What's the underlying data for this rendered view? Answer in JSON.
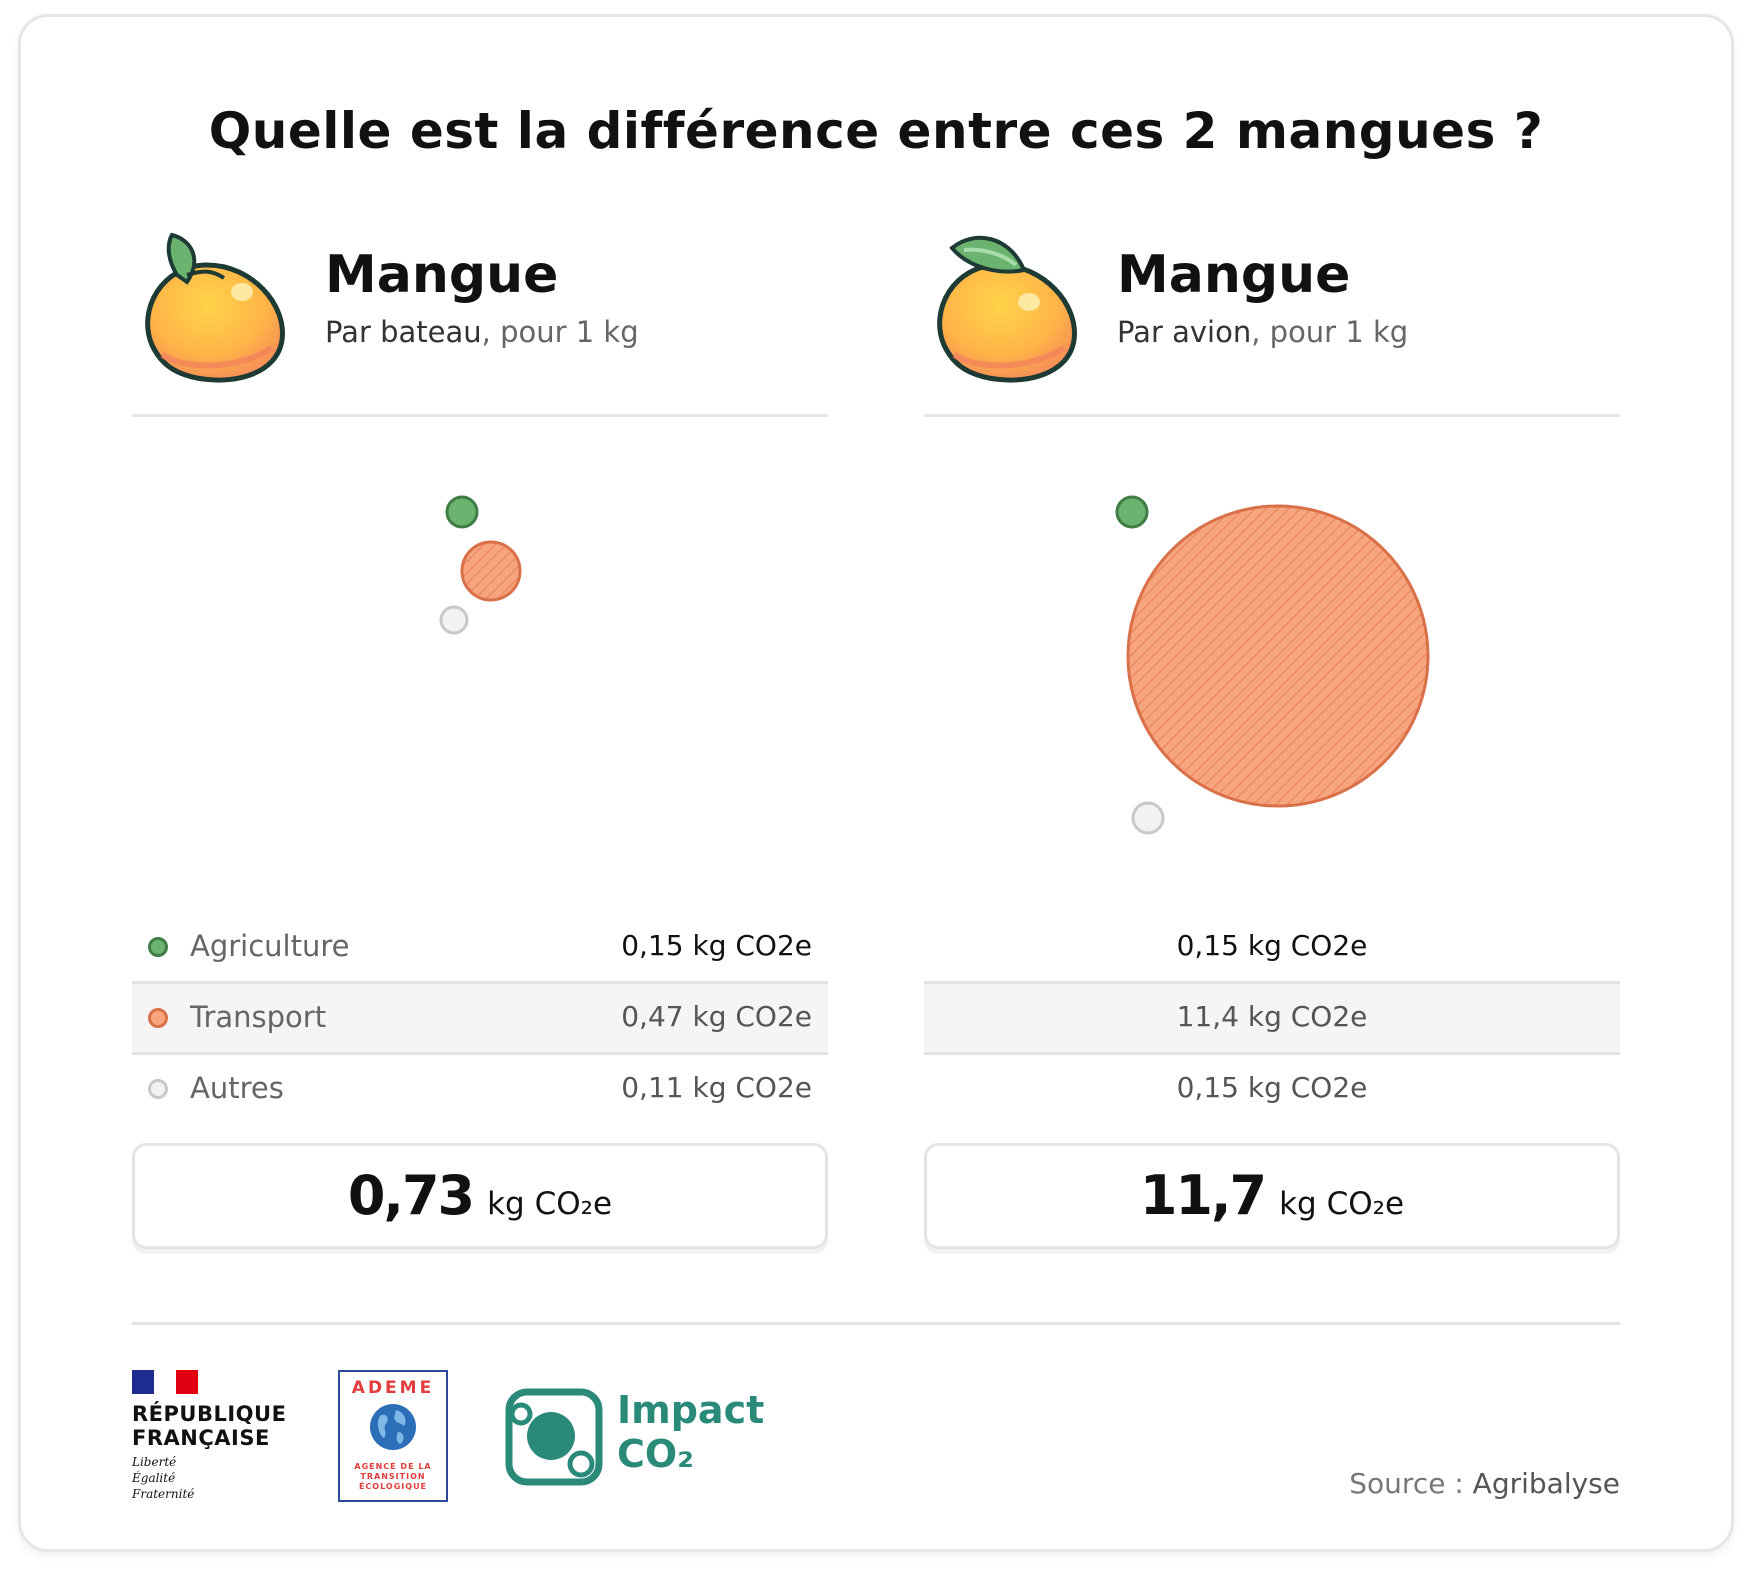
{
  "title": "Quelle est la différence entre ces 2 mangues ?",
  "colors": {
    "agriculture": "#6ab46f",
    "transport": "#f4a07a",
    "autres": "#f2f2f2",
    "brand_teal": "#2a8a7a"
  },
  "products": [
    {
      "name": "Mangue",
      "mode": "Par bateau",
      "per": ", pour 1 kg",
      "rows": [
        {
          "label": "Agriculture",
          "value": "0,15 kg CO2e"
        },
        {
          "label": "Transport",
          "value": "0,47 kg CO2e"
        },
        {
          "label": "Autres",
          "value": "0,11 kg CO2e"
        }
      ],
      "total": "0,73",
      "total_unit": "kg CO₂e"
    },
    {
      "name": "Mangue",
      "mode": "Par avion",
      "per": ", pour 1 kg",
      "rows": [
        {
          "value": "0,15 kg CO2e"
        },
        {
          "value": "11,4 kg CO2e"
        },
        {
          "value": "0,15 kg CO2e"
        }
      ],
      "total": "11,7",
      "total_unit": "kg CO₂e"
    }
  ],
  "logos": {
    "republique": "RÉPUBLIQUE FRANÇAISE",
    "republique_line1": "RÉPUBLIQUE",
    "republique_line2": "FRANÇAISE",
    "motto1": "Liberté",
    "motto2": "Égalité",
    "motto3": "Fraternité",
    "ademe": "ADEME",
    "ademe_sub1": "AGENCE DE LA",
    "ademe_sub2": "TRANSITION",
    "ademe_sub3": "ÉCOLOGIQUE",
    "impact_line1": "Impact",
    "impact_line2": "CO₂"
  },
  "source_label": "Source : ",
  "source_value": "Agribalyse"
}
